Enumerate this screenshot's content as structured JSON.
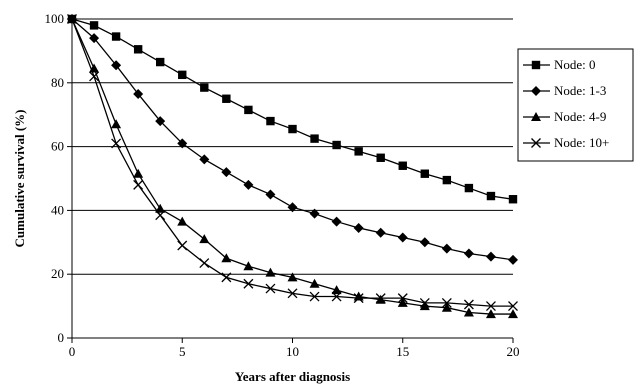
{
  "chart_data": {
    "type": "line",
    "title": "",
    "xlabel": "Years after diagnosis",
    "ylabel": "Cumulative survival (%)",
    "xlim": [
      0,
      20
    ],
    "ylim": [
      0,
      100
    ],
    "x_ticks": [
      0,
      5,
      10,
      15,
      20
    ],
    "y_ticks": [
      0,
      20,
      40,
      60,
      80,
      100
    ],
    "grid": "horizontal",
    "legend_position": "right",
    "x": [
      0,
      1,
      2,
      3,
      4,
      5,
      6,
      7,
      8,
      9,
      10,
      11,
      12,
      13,
      14,
      15,
      16,
      17,
      18,
      19,
      20
    ],
    "series": [
      {
        "name": "Node: 0",
        "marker": "square",
        "values": [
          100,
          98,
          94.5,
          90.5,
          86.5,
          82.5,
          78.5,
          75,
          71.5,
          68,
          65.5,
          62.5,
          60.5,
          58.5,
          56.5,
          54,
          51.5,
          49.5,
          47,
          44.5,
          43.5
        ]
      },
      {
        "name": "Node: 1-3",
        "marker": "diamond",
        "values": [
          100,
          94,
          85.5,
          76.5,
          68,
          61,
          56,
          52,
          48,
          45,
          41,
          39,
          36.5,
          34.5,
          33,
          31.5,
          30,
          28,
          26.5,
          25.5,
          24.5
        ]
      },
      {
        "name": "Node: 4-9",
        "marker": "triangle",
        "values": [
          100,
          84.5,
          67,
          51.5,
          40.5,
          36.5,
          31,
          25,
          22.5,
          20.5,
          19,
          17,
          15,
          13,
          12,
          11,
          10,
          9.5,
          8,
          7.5,
          7.5
        ]
      },
      {
        "name": "Node: 10+",
        "marker": "x",
        "values": [
          100,
          82,
          61,
          48,
          38.5,
          29,
          23.5,
          19,
          17,
          15.5,
          14,
          13,
          13,
          12.5,
          12.5,
          12.5,
          11,
          11,
          10.5,
          10,
          10
        ]
      }
    ]
  }
}
